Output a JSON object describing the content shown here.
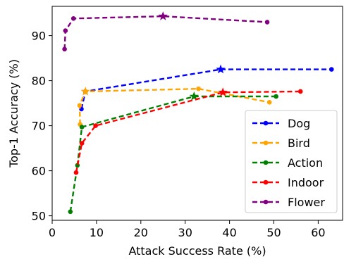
{
  "chart_data": {
    "type": "line",
    "title": "",
    "xlabel": "Attack Success Rate (%)",
    "ylabel": "Top-1 Accuracy (%)",
    "xlim": [
      0,
      65.5
    ],
    "ylim": [
      49,
      96.5
    ],
    "xticks": [
      0,
      10,
      20,
      30,
      40,
      50,
      60
    ],
    "yticks": [
      50,
      60,
      70,
      80,
      90
    ],
    "grid": false,
    "legend_position": "lower-right",
    "line_style": "dashed",
    "series": [
      {
        "name": "Dog",
        "color": "#0000ff",
        "points": [
          [
            6.6,
            73.7
          ],
          [
            7.5,
            77.6
          ],
          [
            38.0,
            82.5
          ],
          [
            63.0,
            82.5
          ]
        ],
        "highlight_index": 2
      },
      {
        "name": "Bird",
        "color": "#ffa500",
        "points": [
          [
            6.3,
            70.3
          ],
          [
            6.2,
            74.5
          ],
          [
            7.5,
            77.6
          ],
          [
            33.0,
            78.2
          ],
          [
            49.0,
            75.2
          ]
        ],
        "highlight_index": 2
      },
      {
        "name": "Action",
        "color": "#008000",
        "points": [
          [
            4.1,
            50.9
          ],
          [
            5.7,
            61.2
          ],
          [
            6.7,
            69.7
          ],
          [
            32.0,
            76.5
          ],
          [
            50.5,
            76.5
          ]
        ],
        "highlight_index": 3
      },
      {
        "name": "Indoor",
        "color": "#ff0000",
        "points": [
          [
            5.4,
            59.6
          ],
          [
            6.7,
            66.1
          ],
          [
            9.8,
            70.0
          ],
          [
            38.5,
            77.4
          ],
          [
            56.0,
            77.6
          ]
        ],
        "highlight_index": 3
      },
      {
        "name": "Flower",
        "color": "#800080",
        "points": [
          [
            2.8,
            87.0
          ],
          [
            3.0,
            91.1
          ],
          [
            4.8,
            93.8
          ],
          [
            25.0,
            94.3
          ],
          [
            48.5,
            93.0
          ]
        ],
        "highlight_index": 3
      }
    ]
  }
}
